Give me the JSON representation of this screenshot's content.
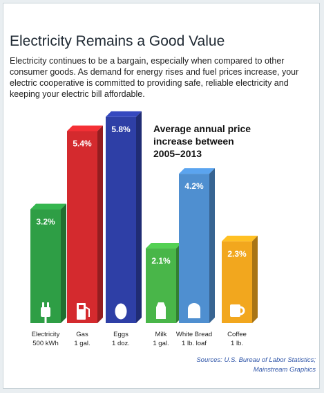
{
  "header": {
    "title": "Electricity Remains a Good Value",
    "intro": "Electricity continues to be a bargain, especially when compared to other consumer goods. As demand for energy rises and fuel prices increase, your electric cooperative is committed to providing safe, reliable electricity and keeping your electric bill affordable."
  },
  "chart_data": {
    "type": "bar",
    "title": "Average annual price increase between 2005–2013",
    "title_lines": [
      "Average annual price",
      "increase between",
      "2005–2013"
    ],
    "categories": [
      {
        "name": "Electricity",
        "unit": "500 kWh",
        "value": 3.2,
        "label": "3.2%",
        "color": "#2e9e45",
        "icon": "plug-icon"
      },
      {
        "name": "Gas",
        "unit": "1 gal.",
        "value": 5.4,
        "label": "5.4%",
        "color": "#d42a2e",
        "icon": "gas-pump-icon"
      },
      {
        "name": "Eggs",
        "unit": "1 doz.",
        "value": 5.8,
        "label": "5.8%",
        "color": "#2e3fa6",
        "icon": "egg-icon"
      },
      {
        "name": "Milk",
        "unit": "1 gal.",
        "value": 2.1,
        "label": "2.1%",
        "color": "#49b649",
        "icon": "milk-carton-icon"
      },
      {
        "name": "White Bread",
        "unit": "1 lb. loaf",
        "value": 4.2,
        "label": "4.2%",
        "color": "#4f8fd0",
        "icon": "bread-icon"
      },
      {
        "name": "Coffee",
        "unit": "1 lb.",
        "value": 2.3,
        "label": "2.3%",
        "color": "#f2a71e",
        "icon": "mug-icon"
      }
    ],
    "xlabel": "",
    "ylabel": "",
    "grid": false,
    "legend": "none"
  },
  "footer": {
    "sources_line1": "Sources: U.S. Bureau of Labor Statistics;",
    "sources_line2": "Mainstream Graphics"
  }
}
